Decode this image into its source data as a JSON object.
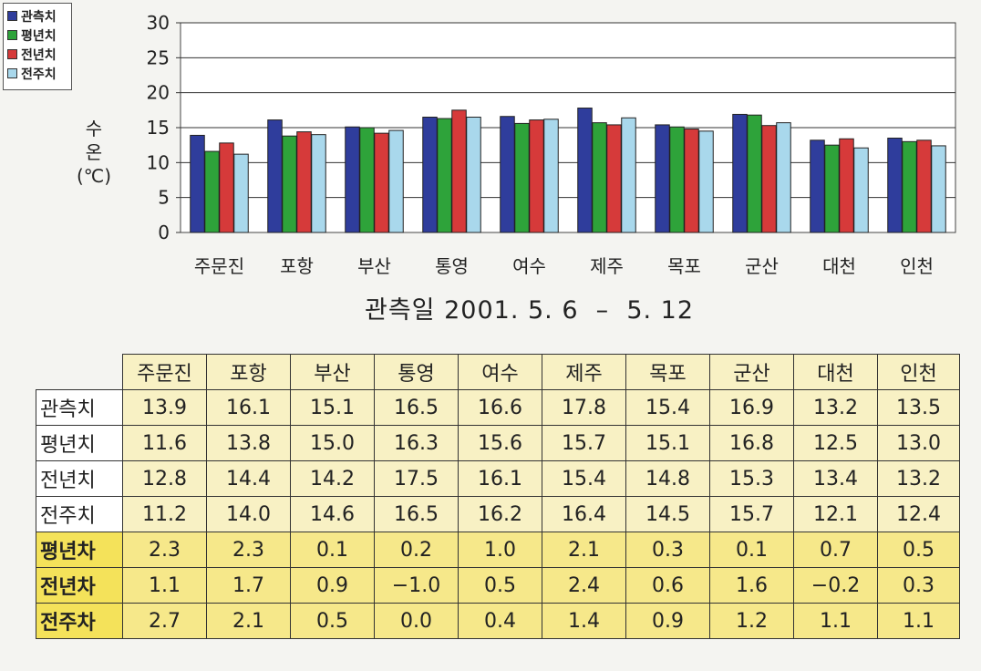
{
  "colors": {
    "observed": "#2f3d9c",
    "normal": "#2ea33a",
    "last_year": "#d63a3a",
    "last_week": "#a9d8ec",
    "table_header": "#f8f1c4",
    "table_diff_rows": "#f6e88a"
  },
  "legend": {
    "items": [
      {
        "label": "관측치",
        "color": "#2f3d9c"
      },
      {
        "label": "평년치",
        "color": "#2ea33a"
      },
      {
        "label": "전년치",
        "color": "#d63a3a"
      },
      {
        "label": "전주치",
        "color": "#a9d8ec"
      }
    ]
  },
  "y_axis": {
    "label_line1": "수",
    "label_line2": "온",
    "label_line3": "(℃)"
  },
  "subtitle": "관측일 2001. 5. 6  –  5. 12",
  "chart_data": {
    "type": "bar",
    "categories": [
      "주문진",
      "포항",
      "부산",
      "통영",
      "여수",
      "제주",
      "목포",
      "군산",
      "대천",
      "인천"
    ],
    "series": [
      {
        "name": "관측치",
        "values": [
          13.9,
          16.1,
          15.1,
          16.5,
          16.6,
          17.8,
          15.4,
          16.9,
          13.2,
          13.5
        ]
      },
      {
        "name": "평년치",
        "values": [
          11.6,
          13.8,
          15.0,
          16.3,
          15.6,
          15.7,
          15.1,
          16.8,
          12.5,
          13.0
        ]
      },
      {
        "name": "전년치",
        "values": [
          12.8,
          14.4,
          14.2,
          17.5,
          16.1,
          15.4,
          14.8,
          15.3,
          13.4,
          13.2
        ]
      },
      {
        "name": "전주치",
        "values": [
          11.2,
          14.0,
          14.6,
          16.5,
          16.2,
          16.4,
          14.5,
          15.7,
          12.1,
          12.4
        ]
      }
    ],
    "ylabel": "수온 (℃)",
    "ylim": [
      0,
      30
    ],
    "yticks": [
      "0",
      "5",
      "10",
      "15",
      "20",
      "25",
      "30"
    ],
    "grid": true,
    "legend_position": "top-left"
  },
  "table": {
    "columns": [
      "주문진",
      "포항",
      "부산",
      "통영",
      "여수",
      "제주",
      "목포",
      "군산",
      "대천",
      "인천"
    ],
    "rows": [
      {
        "label": "관측치",
        "values": [
          "13.9",
          "16.1",
          "15.1",
          "16.5",
          "16.6",
          "17.8",
          "15.4",
          "16.9",
          "13.2",
          "13.5"
        ]
      },
      {
        "label": "평년치",
        "values": [
          "11.6",
          "13.8",
          "15.0",
          "16.3",
          "15.6",
          "15.7",
          "15.1",
          "16.8",
          "12.5",
          "13.0"
        ]
      },
      {
        "label": "전년치",
        "values": [
          "12.8",
          "14.4",
          "14.2",
          "17.5",
          "16.1",
          "15.4",
          "14.8",
          "15.3",
          "13.4",
          "13.2"
        ]
      },
      {
        "label": "전주치",
        "values": [
          "11.2",
          "14.0",
          "14.6",
          "16.5",
          "16.2",
          "16.4",
          "14.5",
          "15.7",
          "12.1",
          "12.4"
        ]
      },
      {
        "label": "평년차",
        "values": [
          "2.3",
          "2.3",
          "0.1",
          "0.2",
          "1.0",
          "2.1",
          "0.3",
          "0.1",
          "0.7",
          "0.5"
        ]
      },
      {
        "label": "전년차",
        "values": [
          "1.1",
          "1.7",
          "0.9",
          "−1.0",
          "0.5",
          "2.4",
          "0.6",
          "1.6",
          "−0.2",
          "0.3"
        ]
      },
      {
        "label": "전주차",
        "values": [
          "2.7",
          "2.1",
          "0.5",
          "0.0",
          "0.4",
          "1.4",
          "0.9",
          "1.2",
          "1.1",
          "1.1"
        ]
      }
    ]
  }
}
